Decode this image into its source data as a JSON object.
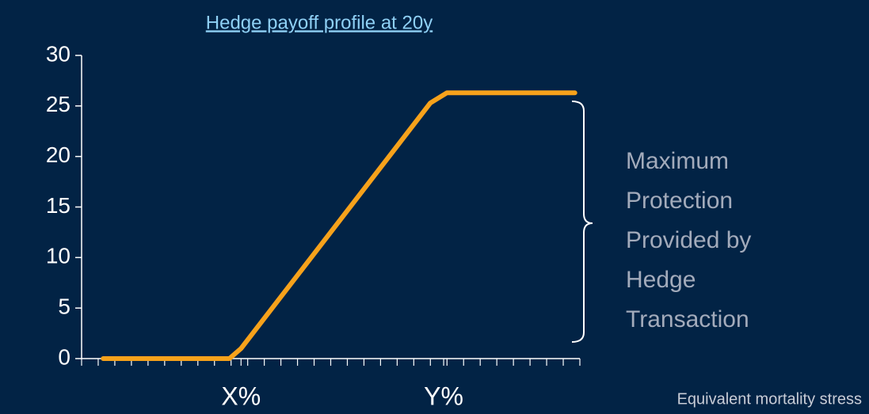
{
  "chart_data": {
    "type": "line",
    "title": "Hedge payoff profile at 20y",
    "x_label": "Equivalent mortality stress",
    "annotation": [
      "Maximum",
      "Protection",
      "Provided by",
      "Hedge",
      "Transaction"
    ],
    "x": [
      1.3,
      8.9,
      9.6,
      21.0,
      22.0,
      29.7
    ],
    "series": [
      {
        "name": "Hedge payoff",
        "color": "#f7a21b",
        "values": [
          0,
          0,
          1,
          25.3,
          26.3,
          26.3
        ]
      }
    ],
    "xlim": [
      0,
      30
    ],
    "xticks": [
      {
        "value": 9.6,
        "label": "X%"
      },
      {
        "value": 21.8,
        "label": "Y%"
      }
    ],
    "ylim": [
      0,
      30
    ],
    "yticks": [
      0,
      5,
      10,
      15,
      20,
      25,
      30
    ],
    "grid": false
  }
}
